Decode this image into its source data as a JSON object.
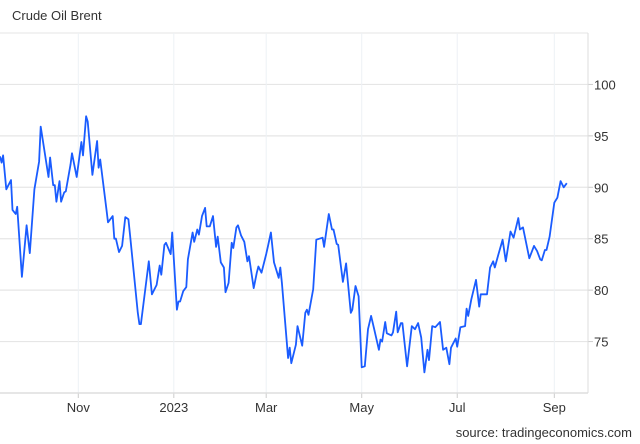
{
  "chart_data": {
    "type": "line",
    "title": "Crude Oil Brent",
    "source": "source: tradingeconomics.com",
    "xlabel": "",
    "ylabel": "",
    "ylim": [
      70,
      105
    ],
    "xlim": [
      "2022-09-12",
      "2023-09-15"
    ],
    "grid": true,
    "y_axis_side": "right",
    "y_ticks": [
      75,
      80,
      85,
      90,
      95,
      100
    ],
    "x_ticks": [
      {
        "date": "2022-11-01",
        "label": "Nov"
      },
      {
        "date": "2023-01-01",
        "label": "2023"
      },
      {
        "date": "2023-03-01",
        "label": "Mar"
      },
      {
        "date": "2023-05-01",
        "label": "May"
      },
      {
        "date": "2023-07-01",
        "label": "Jul"
      },
      {
        "date": "2023-09-01",
        "label": "Sep"
      }
    ],
    "line_color": "#1a5cff",
    "series": [
      {
        "x": [
          "2022-09-12",
          "2022-09-13",
          "2022-09-14",
          "2022-09-16",
          "2022-09-19",
          "2022-09-20",
          "2022-09-22",
          "2022-09-23",
          "2022-09-26",
          "2022-09-29",
          "2022-10-01",
          "2022-10-04",
          "2022-10-07",
          "2022-10-08",
          "2022-10-13",
          "2022-10-14",
          "2022-10-16",
          "2022-10-17",
          "2022-10-18",
          "2022-10-20",
          "2022-10-21",
          "2022-10-23",
          "2022-10-24",
          "2022-10-27",
          "2022-10-28",
          "2022-10-31",
          "2022-11-03",
          "2022-11-04",
          "2022-11-06",
          "2022-11-07",
          "2022-11-10",
          "2022-11-13",
          "2022-11-14",
          "2022-11-15",
          "2022-11-19",
          "2022-11-20",
          "2022-11-23",
          "2022-11-24",
          "2022-11-25",
          "2022-11-27",
          "2022-11-29",
          "2022-12-01",
          "2022-12-03",
          "2022-12-04",
          "2022-12-09",
          "2022-12-10",
          "2022-12-11",
          "2022-12-16",
          "2022-12-18",
          "2022-12-21",
          "2022-12-23",
          "2022-12-24",
          "2022-12-26",
          "2022-12-27",
          "2022-12-30",
          "2022-12-31",
          "2023-01-03",
          "2023-01-04",
          "2023-01-05",
          "2023-01-07",
          "2023-01-09",
          "2023-01-10",
          "2023-01-13",
          "2023-01-14",
          "2023-01-16",
          "2023-01-17",
          "2023-01-19",
          "2023-01-21",
          "2023-01-22",
          "2023-01-24",
          "2023-01-26",
          "2023-01-28",
          "2023-01-29",
          "2023-01-31",
          "2023-02-02",
          "2023-02-03",
          "2023-02-05",
          "2023-02-07",
          "2023-02-08",
          "2023-02-10",
          "2023-02-11",
          "2023-02-13",
          "2023-02-15",
          "2023-02-17",
          "2023-02-18",
          "2023-02-21",
          "2023-02-23",
          "2023-02-24",
          "2023-02-26",
          "2023-03-01",
          "2023-03-02",
          "2023-03-04",
          "2023-03-06",
          "2023-03-09",
          "2023-03-10",
          "2023-03-11",
          "2023-03-15",
          "2023-03-16",
          "2023-03-17",
          "2023-03-20",
          "2023-03-21",
          "2023-03-24",
          "2023-03-26",
          "2023-03-27",
          "2023-03-28",
          "2023-03-31",
          "2023-04-02",
          "2023-04-06",
          "2023-04-07",
          "2023-04-10",
          "2023-04-12",
          "2023-04-13",
          "2023-04-15",
          "2023-04-16",
          "2023-04-19",
          "2023-04-21",
          "2023-04-24",
          "2023-04-25",
          "2023-04-27",
          "2023-04-29",
          "2023-05-01",
          "2023-05-03",
          "2023-05-05",
          "2023-05-07",
          "2023-05-09",
          "2023-05-12",
          "2023-05-13",
          "2023-05-14",
          "2023-05-16",
          "2023-05-17",
          "2023-05-20",
          "2023-05-21",
          "2023-05-23",
          "2023-05-24",
          "2023-05-26",
          "2023-05-27",
          "2023-05-30",
          "2023-06-02",
          "2023-06-04",
          "2023-06-06",
          "2023-06-08",
          "2023-06-10",
          "2023-06-12",
          "2023-06-13",
          "2023-06-15",
          "2023-06-17",
          "2023-06-20",
          "2023-06-22",
          "2023-06-24",
          "2023-06-26",
          "2023-06-27",
          "2023-06-30",
          "2023-07-01",
          "2023-07-03",
          "2023-07-06",
          "2023-07-07",
          "2023-07-08",
          "2023-07-10",
          "2023-07-13",
          "2023-07-15",
          "2023-07-16",
          "2023-07-20",
          "2023-07-22",
          "2023-07-24",
          "2023-07-25",
          "2023-07-27",
          "2023-07-30",
          "2023-08-01",
          "2023-08-04",
          "2023-08-06",
          "2023-08-09",
          "2023-08-10",
          "2023-08-12",
          "2023-08-16",
          "2023-08-19",
          "2023-08-21",
          "2023-08-23",
          "2023-08-24",
          "2023-08-26",
          "2023-08-27",
          "2023-08-29",
          "2023-09-01",
          "2023-09-03",
          "2023-09-05",
          "2023-09-07",
          "2023-09-09"
        ],
        "y": [
          93.0,
          92.4,
          93.1,
          89.8,
          90.7,
          87.8,
          87.4,
          88.1,
          81.3,
          86.3,
          83.6,
          89.8,
          92.5,
          95.9,
          91.0,
          92.9,
          90.2,
          90.2,
          88.6,
          90.6,
          88.6,
          89.5,
          89.6,
          92.2,
          93.3,
          91.0,
          94.4,
          93.1,
          96.9,
          96.4,
          91.2,
          94.5,
          91.9,
          92.7,
          87.8,
          86.6,
          87.2,
          85.0,
          85.0,
          83.7,
          84.3,
          87.1,
          86.9,
          85.4,
          77.8,
          76.7,
          76.7,
          82.8,
          79.6,
          80.5,
          82.4,
          81.5,
          84.4,
          84.6,
          83.5,
          85.6,
          78.1,
          78.9,
          78.9,
          79.9,
          80.3,
          83.0,
          85.6,
          84.7,
          85.9,
          85.4,
          87.2,
          88.0,
          86.2,
          86.2,
          87.2,
          84.2,
          85.2,
          82.7,
          82.2,
          79.8,
          80.7,
          84.6,
          84.1,
          86.1,
          86.3,
          85.3,
          84.7,
          82.8,
          83.3,
          80.2,
          81.7,
          82.3,
          81.7,
          83.5,
          84.2,
          85.6,
          82.7,
          81.2,
          82.2,
          80.7,
          73.4,
          74.4,
          72.9,
          74.7,
          76.5,
          74.6,
          77.8,
          78.1,
          77.6,
          80.1,
          84.9,
          85.1,
          84.2,
          87.4,
          85.9,
          85.9,
          84.5,
          84.4,
          80.8,
          82.6,
          77.8,
          78.1,
          80.4,
          79.4,
          72.5,
          72.6,
          76.2,
          77.5,
          76.2,
          74.2,
          75.2,
          75.0,
          76.9,
          75.8,
          75.6,
          75.9,
          77.9,
          75.9,
          76.8,
          76.8,
          72.6,
          76.5,
          76.2,
          76.8,
          75.4,
          72.0,
          74.2,
          73.2,
          76.5,
          76.4,
          76.9,
          74.2,
          74.4,
          72.8,
          74.4,
          75.3,
          74.5,
          76.4,
          76.5,
          78.2,
          77.5,
          79.1,
          81.0,
          78.4,
          79.6,
          79.6,
          82.2,
          82.8,
          82.2,
          83.3,
          84.9,
          82.8,
          85.7,
          85.1,
          87.0,
          85.9,
          86.1,
          83.1,
          84.3,
          83.8,
          83.0,
          82.9,
          83.9,
          83.9,
          85.2,
          88.5,
          89.0,
          90.6,
          90.0,
          90.4
        ]
      }
    ]
  }
}
